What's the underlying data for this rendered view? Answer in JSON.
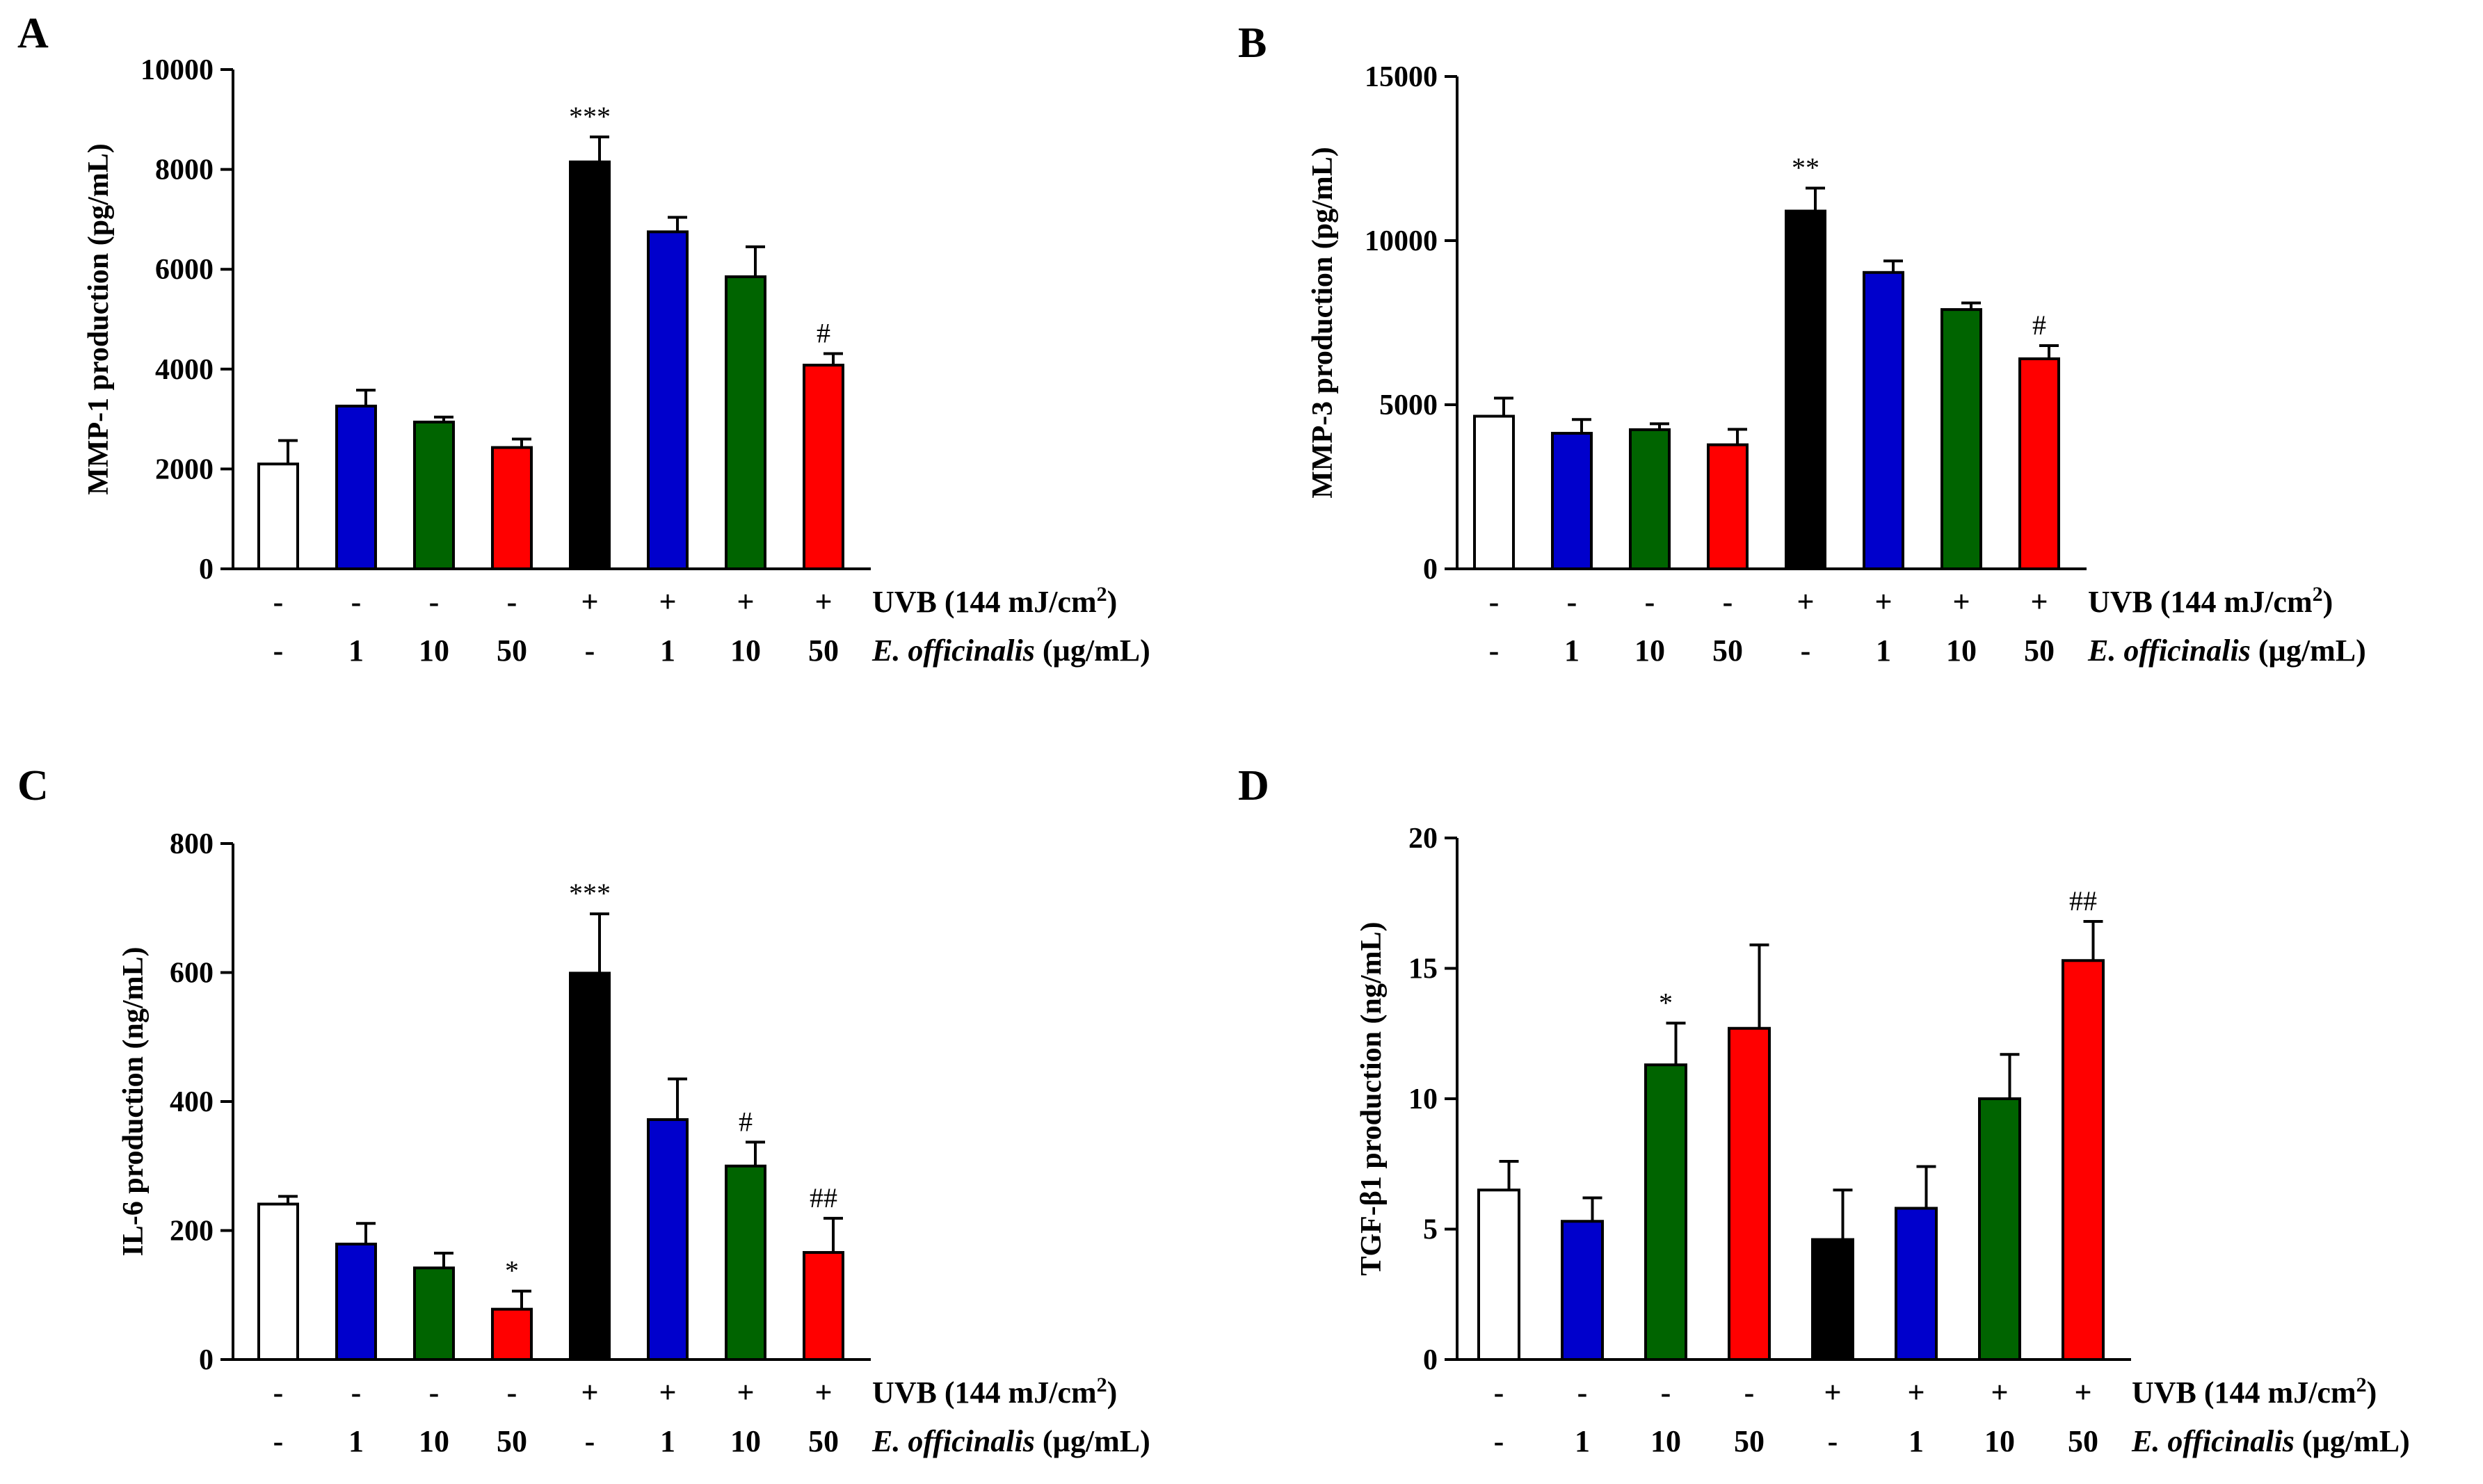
{
  "figure": {
    "uvb_label": "UVB (144 mJ/cm",
    "uvb_sup": "2",
    "uvb_close": ")",
    "extract_label_italic": "E. officinalis",
    "extract_label_rest": " (µg/mL)",
    "uvb_row": [
      "-",
      "-",
      "-",
      "-",
      "+",
      "+",
      "+",
      "+"
    ],
    "dose_row": [
      "-",
      "1",
      "10",
      "50",
      "-",
      "1",
      "10",
      "50"
    ]
  },
  "colors": {
    "white": "#ffffff",
    "blue": "#0000cc",
    "green": "#006400",
    "red": "#ff0000",
    "black": "#000000"
  },
  "bar_colors": [
    "white",
    "blue",
    "green",
    "red",
    "black",
    "blue",
    "green",
    "red"
  ],
  "chart_data": [
    {
      "id": "A",
      "type": "bar",
      "letter": "A",
      "ylabel": "MMP-1 production (pg/mL)",
      "ylim": [
        0,
        10000
      ],
      "yticks": [
        0,
        2000,
        4000,
        6000,
        8000,
        10000
      ],
      "ytick_labels": [
        "0",
        "2000",
        "4000",
        "6000",
        "8000",
        "10000"
      ],
      "categories": [
        "-/-",
        "-/1",
        "-/10",
        "-/50",
        "+/-",
        "+/1",
        "+/10",
        "+/50"
      ],
      "values": [
        2100,
        3260,
        2940,
        2430,
        8150,
        6750,
        5850,
        4080
      ],
      "errors": [
        470,
        320,
        100,
        170,
        500,
        290,
        600,
        230
      ],
      "annotations": [
        "",
        "",
        "",
        "",
        "***",
        "",
        "",
        "#"
      ]
    },
    {
      "id": "B",
      "type": "bar",
      "letter": "B",
      "ylabel": "MMP-3 production (pg/mL)",
      "ylim": [
        0,
        15000
      ],
      "yticks": [
        0,
        5000,
        10000,
        15000
      ],
      "ytick_labels": [
        "0",
        "5000",
        "10000",
        "15000"
      ],
      "categories": [
        "-/-",
        "-/1",
        "-/10",
        "-/50",
        "+/-",
        "+/1",
        "+/10",
        "+/50"
      ],
      "values": [
        4650,
        4130,
        4240,
        3780,
        10900,
        9030,
        7900,
        6400
      ],
      "errors": [
        550,
        420,
        180,
        470,
        700,
        350,
        200,
        400
      ],
      "annotations": [
        "",
        "",
        "",
        "",
        "**",
        "",
        "",
        "#"
      ]
    },
    {
      "id": "C",
      "type": "bar",
      "letter": "C",
      "ylabel": "IL-6 production (ng/mL)",
      "ylim": [
        0,
        800
      ],
      "yticks": [
        0,
        200,
        400,
        600,
        800
      ],
      "ytick_labels": [
        "0",
        "200",
        "400",
        "600",
        "800"
      ],
      "categories": [
        "-/-",
        "-/1",
        "-/10",
        "-/50",
        "+/-",
        "+/1",
        "+/10",
        "+/50"
      ],
      "values": [
        241,
        179,
        142,
        78,
        599,
        372,
        300,
        166
      ],
      "errors": [
        12,
        32,
        23,
        28,
        92,
        63,
        37,
        53
      ],
      "annotations": [
        "",
        "",
        "",
        "*",
        "***",
        "",
        "#",
        "##"
      ]
    },
    {
      "id": "D",
      "type": "bar",
      "letter": "D",
      "ylabel": "TGF-β1 production (ng/mL)",
      "ylim": [
        0,
        20
      ],
      "yticks": [
        0,
        5,
        10,
        15,
        20
      ],
      "ytick_labels": [
        "0",
        "5",
        "10",
        "15",
        "20"
      ],
      "categories": [
        "-/-",
        "-/1",
        "-/10",
        "-/50",
        "+/-",
        "+/1",
        "+/10",
        "+/50"
      ],
      "values": [
        6.5,
        5.3,
        11.3,
        12.7,
        4.6,
        5.8,
        10.0,
        15.3
      ],
      "errors": [
        1.1,
        0.9,
        1.6,
        3.2,
        1.9,
        1.6,
        1.7,
        1.5
      ],
      "annotations": [
        "",
        "",
        "*",
        "",
        "",
        "",
        "",
        "##"
      ]
    }
  ]
}
